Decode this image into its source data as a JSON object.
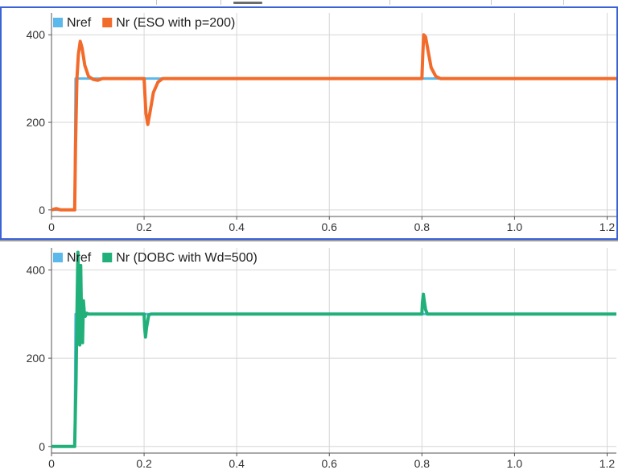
{
  "colors": {
    "nref": "#5bb8ea",
    "nr_eso": "#f26b2b",
    "nr_dobc": "#22b07a",
    "grid": "#d6d6d6",
    "selection_border": "#3a63d8"
  },
  "chart_data": [
    {
      "type": "line",
      "selected": true,
      "xlim": [
        0,
        1.22
      ],
      "ylim": [
        -15,
        450
      ],
      "xticks": [
        0,
        0.2,
        0.4,
        0.6,
        0.8,
        1.0,
        1.2
      ],
      "xtick_labels": [
        "0",
        "0.2",
        "0.4",
        "0.6",
        "0.8",
        "1.0",
        "1.2"
      ],
      "yticks": [
        0,
        200,
        400
      ],
      "ytick_labels": [
        "0",
        "200",
        "400"
      ],
      "grid": true,
      "legend_position": "top-left",
      "series": [
        {
          "name": "Nref",
          "color": "#5bb8ea",
          "x": [
            0,
            0.05,
            0.052,
            0.8,
            0.802,
            1.22
          ],
          "y": [
            0,
            0,
            300,
            300,
            300,
            300
          ]
        },
        {
          "name": "Nr (ESO with p=200)",
          "color": "#f26b2b",
          "x": [
            0,
            0.01,
            0.02,
            0.05,
            0.052,
            0.055,
            0.058,
            0.062,
            0.066,
            0.072,
            0.08,
            0.09,
            0.1,
            0.11,
            0.2,
            0.202,
            0.204,
            0.208,
            0.213,
            0.22,
            0.23,
            0.24,
            0.8,
            0.802,
            0.804,
            0.808,
            0.813,
            0.82,
            0.83,
            0.84,
            0.86,
            1.22
          ],
          "y": [
            0,
            3,
            0,
            0,
            150,
            300,
            355,
            385,
            370,
            330,
            305,
            298,
            296,
            300,
            300,
            260,
            220,
            195,
            225,
            268,
            292,
            300,
            300,
            360,
            400,
            395,
            365,
            325,
            305,
            300,
            300,
            300
          ]
        }
      ]
    },
    {
      "type": "line",
      "selected": false,
      "xlim": [
        0,
        1.22
      ],
      "ylim": [
        -15,
        450
      ],
      "xticks": [
        0,
        0.2,
        0.4,
        0.6,
        0.8,
        1.0,
        1.2
      ],
      "xtick_labels": [
        "0",
        "0.2",
        "0.4",
        "0.6",
        "0.8",
        "1.0",
        "1.2"
      ],
      "yticks": [
        0,
        200,
        400
      ],
      "ytick_labels": [
        "0",
        "200",
        "400"
      ],
      "grid": true,
      "legend_position": "top-left",
      "series": [
        {
          "name": "Nref",
          "color": "#5bb8ea",
          "x": [
            0,
            0.05,
            0.052,
            1.22
          ],
          "y": [
            0,
            0,
            300,
            300
          ]
        },
        {
          "name": "Nr (DOBC with Wd=500)",
          "color": "#22b07a",
          "x": [
            0,
            0.05,
            0.053,
            0.055,
            0.057,
            0.059,
            0.061,
            0.063,
            0.065,
            0.067,
            0.069,
            0.071,
            0.073,
            0.076,
            0.08,
            0.09,
            0.2,
            0.201,
            0.203,
            0.205,
            0.21,
            0.215,
            0.8,
            0.801,
            0.803,
            0.805,
            0.808,
            0.812,
            0.82,
            1.22
          ],
          "y": [
            0,
            0,
            150,
            300,
            440,
            320,
            230,
            410,
            280,
            235,
            330,
            300,
            295,
            302,
            300,
            300,
            300,
            270,
            248,
            268,
            298,
            300,
            300,
            325,
            345,
            330,
            310,
            300,
            300,
            300
          ]
        }
      ]
    }
  ]
}
